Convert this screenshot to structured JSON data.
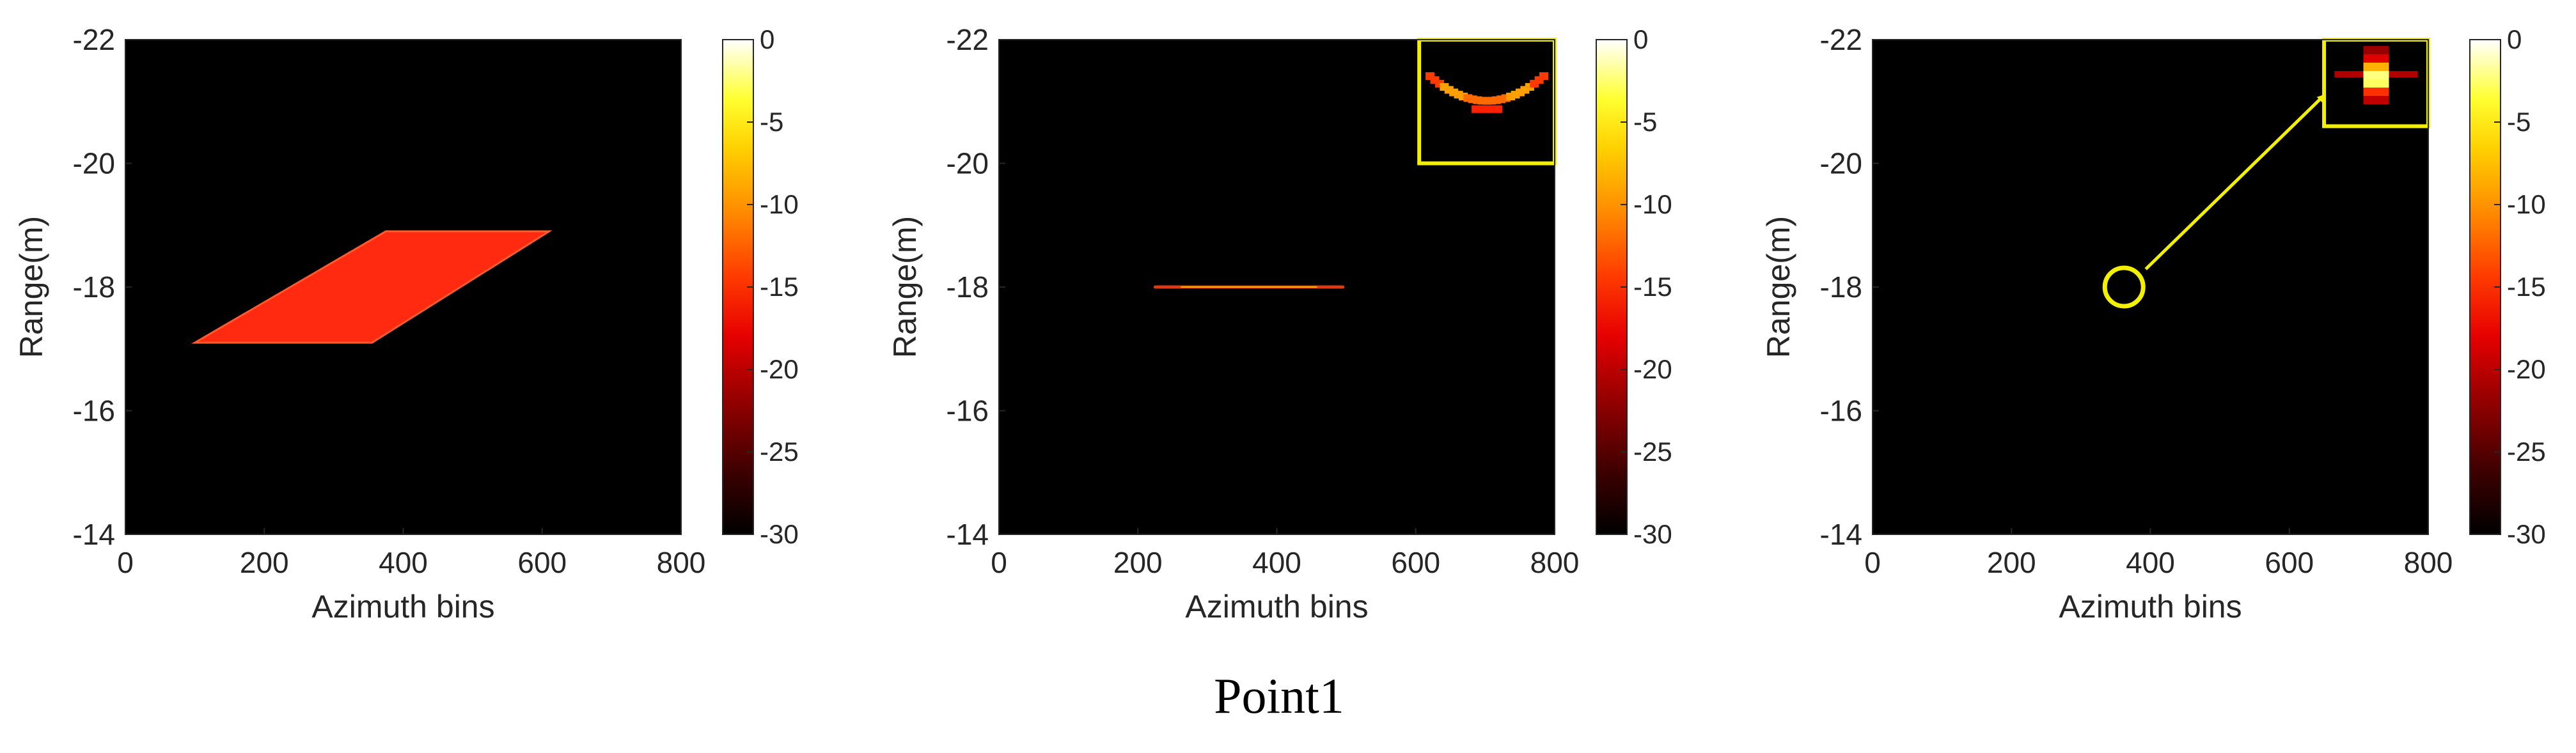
{
  "figure": {
    "caption": "Point1"
  },
  "chart_data": [
    {
      "type": "heatmap",
      "panel": 1,
      "xlabel": "Azimuth bins",
      "ylabel": "Range(m)",
      "xlim": [
        0,
        800
      ],
      "ylim": [
        -22,
        -14
      ],
      "y_reversed": true,
      "xticks": [
        "0",
        "200",
        "400",
        "600",
        "800"
      ],
      "yticks": [
        "-22",
        "-20",
        "-18",
        "-16",
        "-14"
      ],
      "colormap": "hot",
      "clim": [
        -30,
        0
      ],
      "colorbar_ticks": [
        "0",
        "-5",
        "-10",
        "-15",
        "-20",
        "-25",
        "-30"
      ],
      "background_color": "#000000",
      "signal": {
        "shape": "parallelogram",
        "color": "#ff2a10",
        "vertices": [
          [
            100,
            -17.1
          ],
          [
            355,
            -17.1
          ],
          [
            610,
            -18.9
          ],
          [
            375,
            -18.9
          ]
        ]
      }
    },
    {
      "type": "heatmap",
      "panel": 2,
      "xlabel": "Azimuth bins",
      "ylabel": "Range(m)",
      "xlim": [
        0,
        800
      ],
      "ylim": [
        -22,
        -14
      ],
      "y_reversed": true,
      "xticks": [
        "0",
        "200",
        "400",
        "600",
        "800"
      ],
      "yticks": [
        "-22",
        "-20",
        "-18",
        "-16",
        "-14"
      ],
      "colormap": "hot",
      "clim": [
        -30,
        0
      ],
      "colorbar_ticks": [
        "0",
        "-5",
        "-10",
        "-15",
        "-20",
        "-25",
        "-30"
      ],
      "background_color": "#000000",
      "signal": {
        "shape": "line",
        "color": "#e03a10",
        "x_range": [
          225,
          495
        ],
        "y": -18
      },
      "inset": {
        "box_color": "#f2f000",
        "x_range": [
          605,
          800
        ],
        "y_range": [
          -22,
          -20
        ],
        "content": "curved-response"
      }
    },
    {
      "type": "heatmap",
      "panel": 3,
      "xlabel": "Azimuth bins",
      "ylabel": "Range(m)",
      "xlim": [
        0,
        800
      ],
      "ylim": [
        -22,
        -14
      ],
      "y_reversed": true,
      "xticks": [
        "0",
        "200",
        "400",
        "600",
        "800"
      ],
      "yticks": [
        "-22",
        "-20",
        "-18",
        "-16",
        "-14"
      ],
      "colormap": "hot",
      "clim": [
        -30,
        0
      ],
      "colorbar_ticks": [
        "0",
        "-5",
        "-10",
        "-15",
        "-20",
        "-25",
        "-30"
      ],
      "background_color": "#000000",
      "marker": {
        "shape": "circle",
        "color": "#f2f000",
        "x": 362,
        "y": -18
      },
      "inset": {
        "box_color": "#f2f000",
        "x_range": [
          650,
          800
        ],
        "y_range": [
          -22,
          -20.6
        ],
        "content": "focused-point"
      },
      "arrow": {
        "color": "#f2f000",
        "from": [
          362,
          -18
        ],
        "to": [
          650,
          -21.1
        ]
      }
    }
  ]
}
